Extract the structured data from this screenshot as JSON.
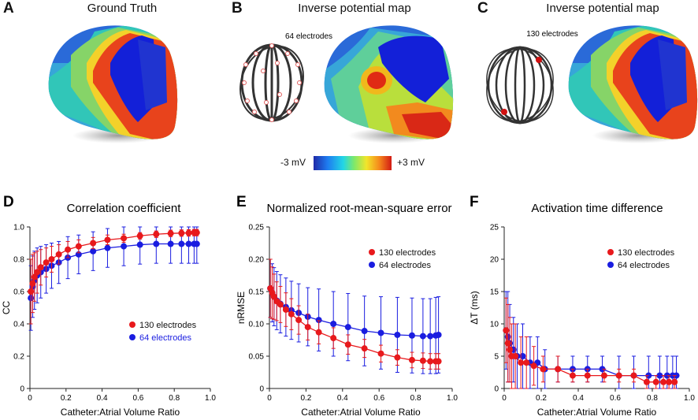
{
  "panels": {
    "A": {
      "letter": "A",
      "title": "Ground Truth"
    },
    "B": {
      "letter": "B",
      "title": "Inverse potential map",
      "electrodes": "64 electrodes"
    },
    "C": {
      "letter": "C",
      "title": "Inverse potential map",
      "electrodes": "130 electrodes"
    }
  },
  "colorbar": {
    "min_label": "-3 mV",
    "max_label": "+3 mV"
  },
  "colors": {
    "red": "#e8191c",
    "blue": "#1a1de0",
    "legend_blue_text": "#1a1de0"
  },
  "chart_data": [
    {
      "letter": "D",
      "type": "line",
      "title": "Correlation coefficient",
      "xlabel": "Catheter:Atrial Volume Ratio",
      "ylabel": "CC",
      "xlim": [
        0,
        1.0
      ],
      "ylim": [
        0,
        1.0
      ],
      "xticks": [
        0,
        0.2,
        0.4,
        0.6,
        0.8,
        1.0
      ],
      "xtick_labels": [
        "0",
        "0.2",
        "0.4",
        "0.6",
        "0.8",
        "1.0"
      ],
      "yticks": [
        0,
        0.2,
        0.4,
        0.6,
        0.8,
        1.0
      ],
      "ytick_labels": [
        "0",
        "0.2",
        "0.4",
        "0.6",
        "0.8",
        "1.0"
      ],
      "legend_position": "middle-right",
      "series": [
        {
          "name": "130 electrodes",
          "color": "#e8191c",
          "x": [
            0.005,
            0.015,
            0.025,
            0.04,
            0.06,
            0.09,
            0.12,
            0.16,
            0.21,
            0.27,
            0.35,
            0.43,
            0.52,
            0.61,
            0.7,
            0.78,
            0.84,
            0.88,
            0.91,
            0.925
          ],
          "y": [
            0.6,
            0.65,
            0.69,
            0.72,
            0.75,
            0.78,
            0.8,
            0.83,
            0.86,
            0.88,
            0.9,
            0.92,
            0.93,
            0.945,
            0.955,
            0.96,
            0.962,
            0.963,
            0.965,
            0.965
          ],
          "err": [
            0.2,
            0.18,
            0.15,
            0.13,
            0.11,
            0.09,
            0.08,
            0.06,
            0.05,
            0.04,
            0.035,
            0.03,
            0.025,
            0.02,
            0.02,
            0.02,
            0.02,
            0.02,
            0.02,
            0.02
          ]
        },
        {
          "name": "64 electrodes",
          "color": "#1a1de0",
          "x": [
            0.005,
            0.015,
            0.025,
            0.04,
            0.06,
            0.09,
            0.12,
            0.16,
            0.21,
            0.27,
            0.35,
            0.43,
            0.52,
            0.61,
            0.7,
            0.78,
            0.84,
            0.88,
            0.91,
            0.925
          ],
          "y": [
            0.56,
            0.63,
            0.67,
            0.7,
            0.72,
            0.74,
            0.76,
            0.78,
            0.81,
            0.83,
            0.85,
            0.87,
            0.88,
            0.89,
            0.895,
            0.895,
            0.895,
            0.895,
            0.895,
            0.895
          ],
          "err": [
            0.2,
            0.19,
            0.18,
            0.17,
            0.16,
            0.15,
            0.14,
            0.13,
            0.13,
            0.12,
            0.12,
            0.12,
            0.12,
            0.12,
            0.12,
            0.12,
            0.12,
            0.12,
            0.12,
            0.12
          ]
        }
      ]
    },
    {
      "letter": "E",
      "type": "line",
      "title": "Normalized root-mean-square error",
      "xlabel": "Catheter:Atrial Volume Ratio",
      "ylabel": "nRMSE",
      "xlim": [
        0,
        1.0
      ],
      "ylim": [
        0,
        0.25
      ],
      "xticks": [
        0,
        0.2,
        0.4,
        0.6,
        0.8,
        1.0
      ],
      "xtick_labels": [
        "0",
        "0.2",
        "0.4",
        "0.6",
        "0.8",
        "1.0"
      ],
      "yticks": [
        0,
        0.05,
        0.1,
        0.15,
        0.2,
        0.25
      ],
      "ytick_labels": [
        "0",
        "0.05",
        "0.10",
        "0.15",
        "0.20",
        "0.25"
      ],
      "legend_position": "top-right",
      "series": [
        {
          "name": "130 electrodes",
          "color": "#e8191c",
          "x": [
            0.005,
            0.015,
            0.025,
            0.04,
            0.06,
            0.09,
            0.12,
            0.16,
            0.21,
            0.27,
            0.35,
            0.43,
            0.52,
            0.61,
            0.7,
            0.78,
            0.84,
            0.88,
            0.91,
            0.925
          ],
          "y": [
            0.155,
            0.148,
            0.142,
            0.135,
            0.13,
            0.122,
            0.115,
            0.106,
            0.095,
            0.087,
            0.078,
            0.068,
            0.062,
            0.054,
            0.048,
            0.044,
            0.043,
            0.042,
            0.042,
            0.042
          ],
          "err": [
            0.045,
            0.04,
            0.035,
            0.03,
            0.028,
            0.026,
            0.024,
            0.022,
            0.02,
            0.018,
            0.016,
            0.015,
            0.014,
            0.013,
            0.012,
            0.012,
            0.012,
            0.012,
            0.012,
            0.012
          ]
        },
        {
          "name": "64 electrodes",
          "color": "#1a1de0",
          "x": [
            0.005,
            0.015,
            0.025,
            0.04,
            0.06,
            0.09,
            0.12,
            0.16,
            0.21,
            0.27,
            0.35,
            0.43,
            0.52,
            0.61,
            0.7,
            0.78,
            0.84,
            0.88,
            0.91,
            0.925
          ],
          "y": [
            0.155,
            0.148,
            0.142,
            0.136,
            0.131,
            0.126,
            0.121,
            0.117,
            0.111,
            0.106,
            0.1,
            0.095,
            0.089,
            0.086,
            0.083,
            0.082,
            0.081,
            0.081,
            0.082,
            0.083
          ],
          "err": [
            0.045,
            0.045,
            0.045,
            0.045,
            0.045,
            0.045,
            0.045,
            0.045,
            0.045,
            0.048,
            0.05,
            0.052,
            0.054,
            0.056,
            0.058,
            0.058,
            0.058,
            0.058,
            0.059,
            0.059
          ]
        }
      ]
    },
    {
      "letter": "F",
      "type": "line",
      "title": "Activation time difference",
      "xlabel": "Catheter:Atrial Volume Ratio",
      "ylabel": "ΔT (ms)",
      "xlim": [
        0,
        1.0
      ],
      "ylim": [
        0,
        25
      ],
      "xticks": [
        0,
        0.2,
        0.4,
        0.6,
        0.8,
        1.0
      ],
      "xtick_labels": [
        "0",
        "0.2",
        "0.4",
        "0.6",
        "0.8",
        "1.0"
      ],
      "yticks": [
        0,
        5,
        10,
        15,
        20,
        25
      ],
      "ytick_labels": [
        "0",
        "5",
        "10",
        "15",
        "20",
        "25"
      ],
      "legend_position": "top-right",
      "series": [
        {
          "name": "130 electrodes",
          "color": "#e8191c",
          "x": [
            0.01,
            0.02,
            0.03,
            0.04,
            0.06,
            0.09,
            0.12,
            0.16,
            0.21,
            0.29,
            0.37,
            0.45,
            0.54,
            0.62,
            0.7,
            0.77,
            0.82,
            0.86,
            0.89,
            0.92
          ],
          "y": [
            9,
            7,
            6,
            5,
            5,
            4,
            4,
            3.5,
            3,
            3,
            2,
            2,
            2,
            2,
            2,
            1,
            1,
            1,
            1,
            1
          ],
          "err": [
            5,
            6,
            5,
            5,
            5,
            4,
            4,
            3,
            2,
            2,
            1,
            1,
            1,
            1,
            1,
            1,
            1,
            1,
            1,
            1
          ]
        },
        {
          "name": "64 electrodes",
          "color": "#1a1de0",
          "x": [
            0.01,
            0.02,
            0.03,
            0.05,
            0.07,
            0.1,
            0.14,
            0.18,
            0.22,
            0.29,
            0.37,
            0.45,
            0.53,
            0.62,
            0.7,
            0.78,
            0.84,
            0.88,
            0.91,
            0.93
          ],
          "y": [
            9,
            8,
            7,
            6,
            5,
            5,
            4,
            4,
            3,
            3,
            3,
            3,
            3,
            2,
            2,
            2,
            2,
            2,
            2,
            2
          ],
          "err": [
            6,
            7,
            6,
            5,
            5,
            5,
            4,
            4,
            3,
            2,
            2,
            2,
            2,
            3,
            3,
            3,
            3,
            3,
            3,
            3
          ]
        }
      ]
    }
  ]
}
